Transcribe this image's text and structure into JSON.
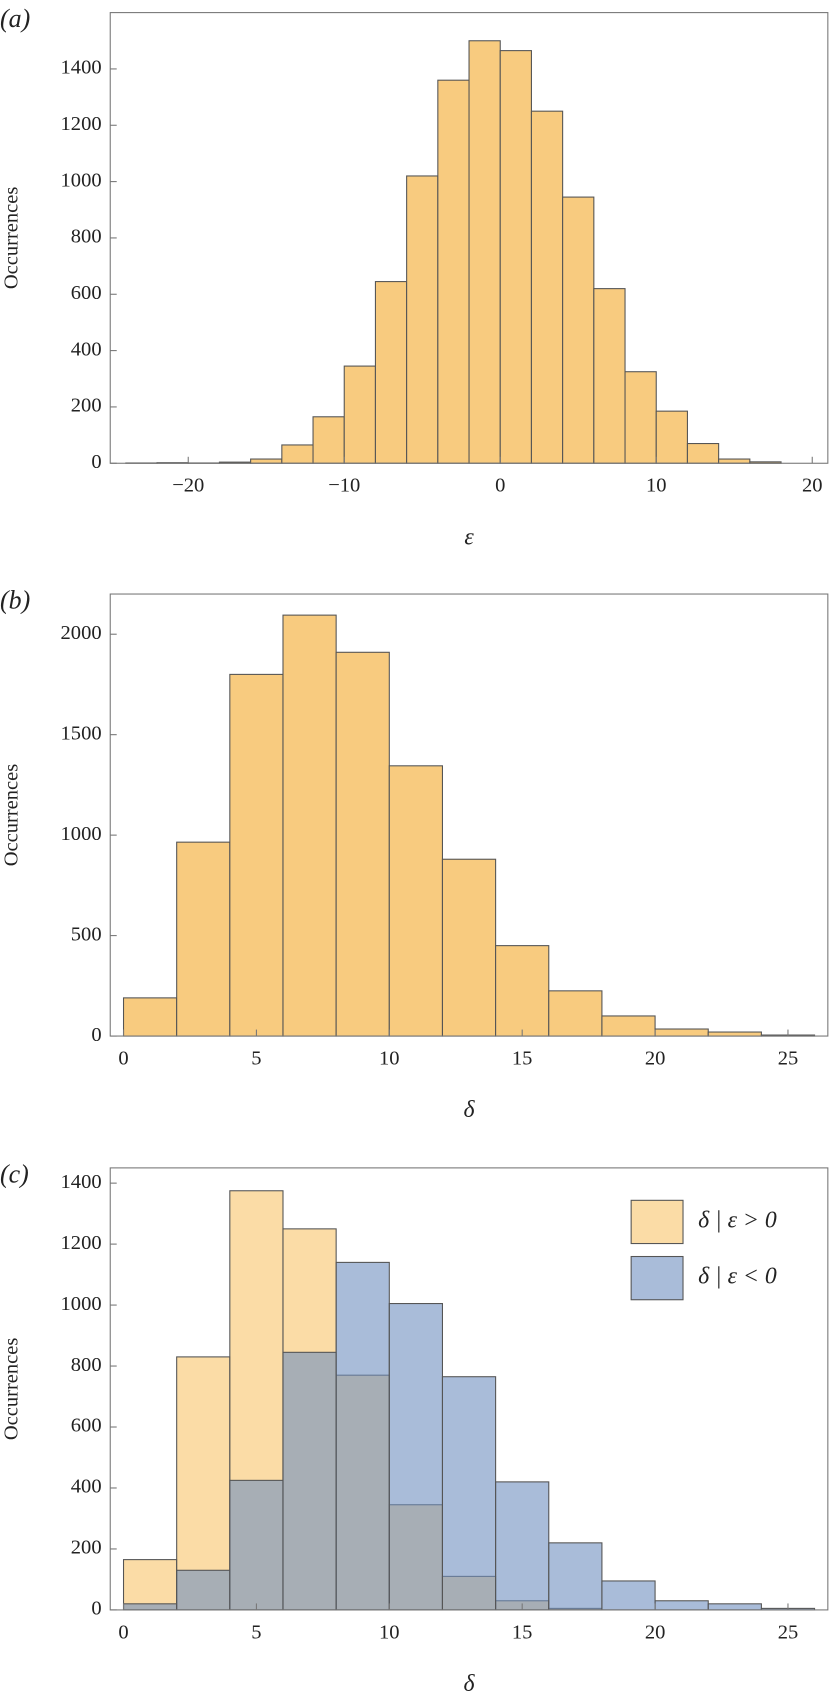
{
  "chart_data": [
    {
      "type": "histogram",
      "panel_label": "(a)",
      "xlabel": "ε",
      "ylabel": "Occurrences",
      "color": "#f8cb7f",
      "bins": [
        -24,
        -22,
        -20,
        -18,
        -16,
        -14,
        -12,
        -10,
        -8,
        -6,
        -4,
        -2,
        0,
        2,
        4,
        6,
        8,
        10,
        12,
        14,
        16,
        18
      ],
      "values": [
        1,
        2,
        1,
        4,
        15,
        65,
        165,
        345,
        645,
        1020,
        1360,
        1500,
        1465,
        1250,
        945,
        620,
        325,
        185,
        70,
        15,
        5
      ],
      "xlim": [
        -25,
        21
      ],
      "ylim": [
        0,
        1600
      ],
      "xticks": [
        {
          "value": -20,
          "label": "−20"
        },
        {
          "value": -10,
          "label": "−10"
        },
        0,
        10,
        20
      ],
      "yticks": [
        0,
        200,
        400,
        600,
        800,
        1000,
        1200,
        1400
      ]
    },
    {
      "type": "histogram",
      "panel_label": "(b)",
      "xlabel": "δ",
      "ylabel": "Occurrences",
      "color": "#f8cb7f",
      "bins": [
        0,
        2,
        4,
        6,
        8,
        10,
        12,
        14,
        16,
        18,
        20,
        22,
        24,
        26
      ],
      "values": [
        190,
        965,
        1800,
        2095,
        1910,
        1345,
        880,
        450,
        225,
        100,
        35,
        20,
        5
      ],
      "xlim": [
        -0.5,
        26.5
      ],
      "ylim": [
        0,
        2200
      ],
      "xticks": [
        0,
        5,
        10,
        15,
        20,
        25
      ],
      "yticks": [
        0,
        500,
        1000,
        1500,
        2000
      ]
    },
    {
      "type": "histogram",
      "panel_label": "(c)",
      "xlabel": "δ",
      "ylabel": "Occurrences",
      "legend": "top-right",
      "bins": [
        0,
        2,
        4,
        6,
        8,
        10,
        12,
        14,
        16,
        18,
        20,
        22,
        24,
        26
      ],
      "series": [
        {
          "name": "δ | ε > 0",
          "color": "#f8c46a",
          "values": [
            165,
            830,
            1375,
            1250,
            770,
            345,
            110,
            30,
            5,
            0,
            0,
            0,
            0
          ]
        },
        {
          "name": "δ | ε < 0",
          "color": "#6f8fc0",
          "values": [
            20,
            130,
            425,
            845,
            1140,
            1005,
            765,
            420,
            220,
            95,
            30,
            20,
            5
          ]
        }
      ],
      "xlim": [
        -0.5,
        26.5
      ],
      "ylim": [
        0,
        1450
      ],
      "xticks": [
        0,
        5,
        10,
        15,
        20,
        25
      ],
      "yticks": [
        0,
        200,
        400,
        600,
        800,
        1000,
        1200,
        1400
      ]
    }
  ]
}
